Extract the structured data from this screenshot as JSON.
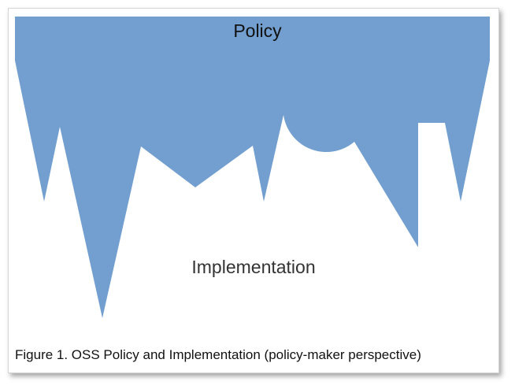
{
  "diagram": {
    "top_label": "Policy",
    "bottom_label": "Implementation",
    "caption": "Figure 1. OSS Policy and Implementation (policy-maker perspective)",
    "shape_color": "#729fcf"
  }
}
